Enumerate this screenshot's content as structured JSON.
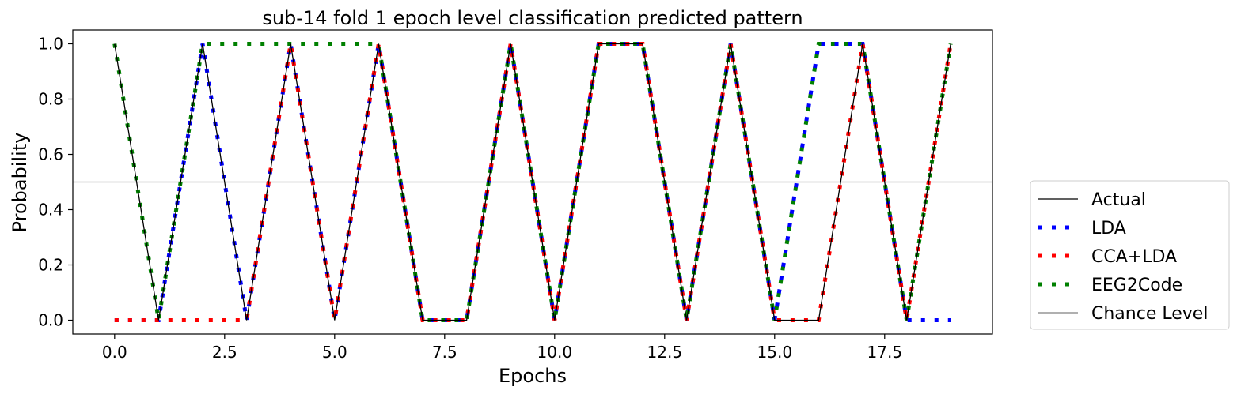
{
  "chart_data": {
    "type": "line",
    "title": "sub-14 fold 1 epoch level classification predicted pattern",
    "xlabel": "Epochs",
    "ylabel": "Probability",
    "xlim": [
      -0.95,
      19.95
    ],
    "ylim": [
      -0.05,
      1.05
    ],
    "xticks": [
      0,
      2.5,
      5,
      7.5,
      10,
      12.5,
      15,
      17.5
    ],
    "xtick_labels": [
      "0.0",
      "2.5",
      "5.0",
      "7.5",
      "10.0",
      "12.5",
      "15.0",
      "17.5"
    ],
    "yticks": [
      0,
      0.2,
      0.4,
      0.6,
      0.8,
      1.0
    ],
    "ytick_labels": [
      "0.0",
      "0.2",
      "0.4",
      "0.6",
      "0.8",
      "1.0"
    ],
    "grid": false,
    "legend_position": "outside-right-bottom",
    "chance_level": 0.5,
    "series": [
      {
        "name": "Actual",
        "color": "#000000",
        "style": "solid",
        "x": [
          0,
          1,
          2,
          3,
          4,
          5,
          6,
          7,
          8,
          9,
          10,
          11,
          12,
          13,
          14,
          15,
          16,
          17,
          18,
          19
        ],
        "y": [
          1,
          0,
          1,
          0,
          1,
          0,
          1,
          0,
          0,
          1,
          0,
          1,
          1,
          0,
          1,
          0,
          0,
          1,
          0,
          1
        ]
      },
      {
        "name": "LDA",
        "color": "#0000ff",
        "style": "dotted",
        "x": [
          0,
          1,
          2,
          3,
          4,
          5,
          6,
          7,
          8,
          9,
          10,
          11,
          12,
          13,
          14,
          15,
          16,
          17,
          18,
          19
        ],
        "y": [
          0,
          0,
          1,
          0,
          1,
          0,
          1,
          0,
          0,
          1,
          0,
          1,
          1,
          0,
          1,
          0,
          1,
          1,
          0,
          0
        ]
      },
      {
        "name": "CCA+LDA",
        "color": "#ff0000",
        "style": "dotted",
        "x": [
          0,
          1,
          2,
          3,
          4,
          5,
          6,
          7,
          8,
          9,
          10,
          11,
          12,
          13,
          14,
          15,
          16,
          17,
          18,
          19
        ],
        "y": [
          0,
          0,
          0,
          0,
          1,
          0,
          1,
          0,
          0,
          1,
          0,
          1,
          1,
          0,
          1,
          0,
          0,
          1,
          0,
          1
        ]
      },
      {
        "name": "EEG2Code",
        "color": "#008000",
        "style": "dotted",
        "x": [
          0,
          1,
          2,
          3,
          4,
          5,
          6,
          7,
          8,
          9,
          10,
          11,
          12,
          13,
          14,
          15,
          16,
          17,
          18,
          19
        ],
        "y": [
          1,
          0,
          1,
          1,
          1,
          1,
          1,
          0,
          0,
          1,
          0,
          1,
          1,
          0,
          1,
          0,
          1,
          1,
          0,
          1
        ]
      }
    ],
    "legend": [
      {
        "label": "Actual",
        "color": "#000000",
        "style": "solid"
      },
      {
        "label": "LDA",
        "color": "#0000ff",
        "style": "dotted"
      },
      {
        "label": "CCA+LDA",
        "color": "#ff0000",
        "style": "dotted"
      },
      {
        "label": "EEG2Code",
        "color": "#008000",
        "style": "dotted"
      },
      {
        "label": "Chance Level",
        "color": "#808080",
        "style": "solid"
      }
    ]
  }
}
